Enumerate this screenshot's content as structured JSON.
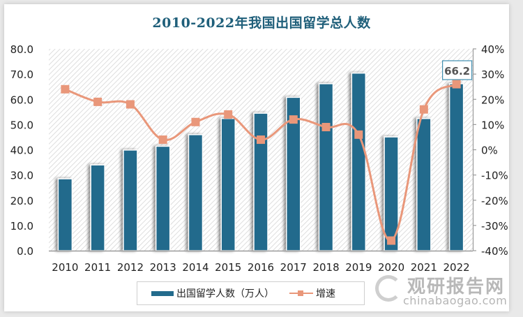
{
  "title": "2010-2022年我国出国留学总人数",
  "legend": {
    "bar_label": "出国留学人数（万人）",
    "line_label": "增速"
  },
  "colors": {
    "bar": "#236b8c",
    "line": "#e9977a",
    "title": "#1f5f7a",
    "axis_text": "#222222",
    "hatch": "#d6d6d6"
  },
  "callout": {
    "label": "66.2",
    "year": "2022"
  },
  "watermark": {
    "cn": "观研报告网",
    "en": "chinabaogao.com"
  },
  "chart_data": {
    "type": "bar",
    "title": "2010-2022年我国出国留学总人数",
    "categories": [
      "2010",
      "2011",
      "2012",
      "2013",
      "2014",
      "2015",
      "2016",
      "2017",
      "2018",
      "2019",
      "2020",
      "2021",
      "2022"
    ],
    "series": [
      {
        "name": "出国留学人数（万人）",
        "type": "bar",
        "axis": "left",
        "values": [
          28.5,
          34.0,
          39.9,
          41.4,
          46.0,
          52.4,
          54.5,
          60.8,
          66.2,
          70.4,
          45.1,
          52.4,
          66.2
        ]
      },
      {
        "name": "增速",
        "type": "line",
        "axis": "right",
        "unit": "%",
        "values": [
          24,
          19,
          18,
          4,
          11,
          14,
          4,
          12,
          9,
          6,
          -36,
          16,
          26
        ]
      }
    ],
    "xlabel": "",
    "ylabel": "",
    "ylim": [
      0,
      80
    ],
    "yticks": [
      "0.0",
      "10.0",
      "20.0",
      "30.0",
      "40.0",
      "50.0",
      "60.0",
      "70.0",
      "80.0"
    ],
    "y2lim": [
      -40,
      40
    ],
    "y2ticks": [
      "-40%",
      "-30%",
      "-20%",
      "-10%",
      "0%",
      "10%",
      "20%",
      "30%",
      "40%"
    ],
    "annotations": [
      {
        "category": "2022",
        "text": "66.2"
      }
    ],
    "legend_position": "bottom",
    "grid": false
  }
}
